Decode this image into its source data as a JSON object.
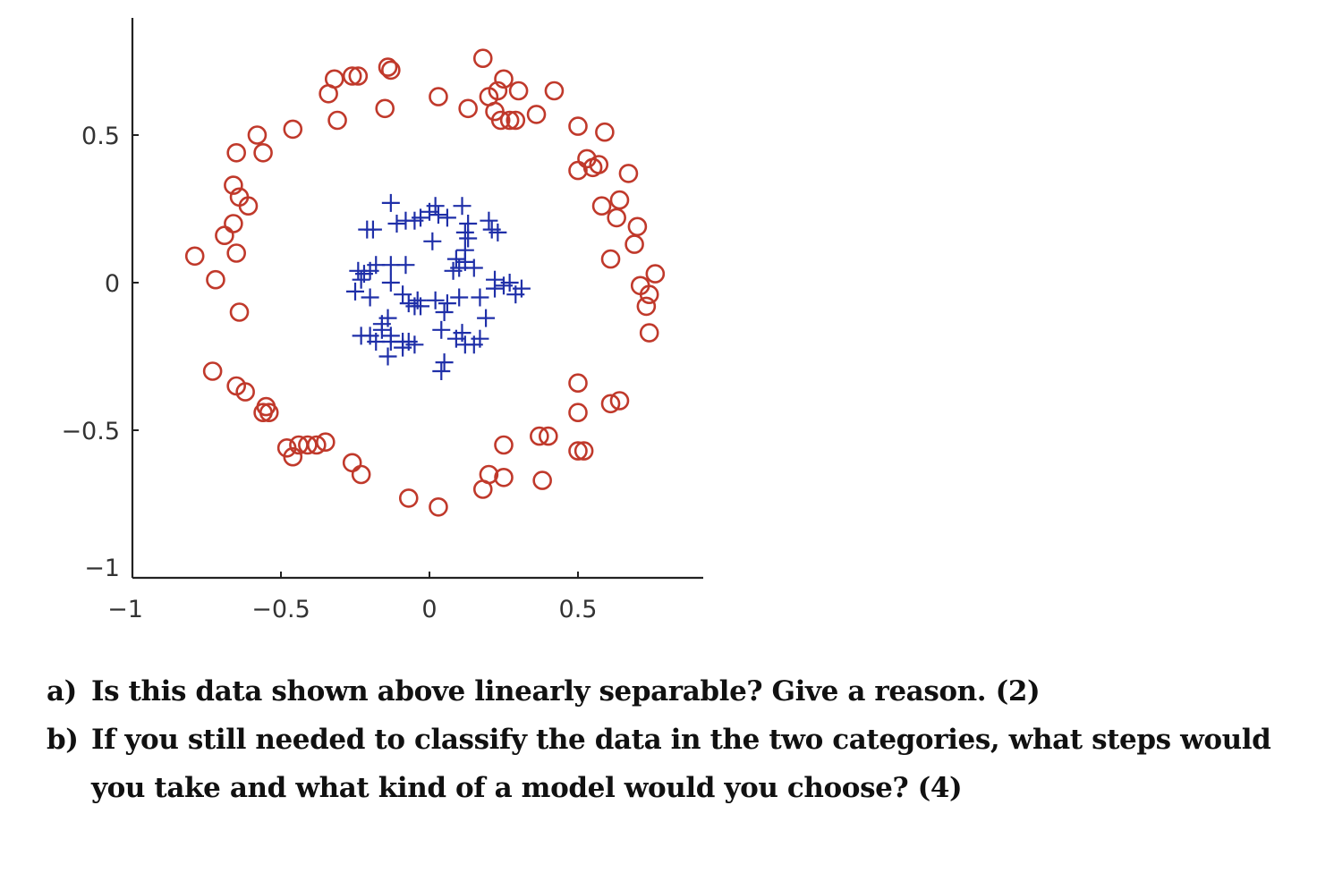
{
  "chart_data": {
    "type": "scatter",
    "title": "",
    "xlabel": "",
    "ylabel": "",
    "xlim": [
      -1,
      1
    ],
    "ylim": [
      -1,
      0.9
    ],
    "x_ticks": [
      {
        "value": -1,
        "label": "−1"
      },
      {
        "value": -0.5,
        "label": "−0.5"
      },
      {
        "value": 0,
        "label": "0"
      },
      {
        "value": 0.5,
        "label": "0.5"
      }
    ],
    "y_ticks": [
      {
        "value": -1,
        "label": "−1"
      },
      {
        "value": -0.5,
        "label": "−0.5"
      },
      {
        "value": 0,
        "label": "0"
      },
      {
        "value": 0.5,
        "label": "0.5"
      }
    ],
    "grid": false,
    "series": [
      {
        "marker": "circle",
        "color": "#c0392b",
        "points": [
          [
            -0.79,
            0.09
          ],
          [
            -0.72,
            0.01
          ],
          [
            -0.69,
            0.16
          ],
          [
            -0.66,
            0.2
          ],
          [
            -0.65,
            0.1
          ],
          [
            -0.66,
            0.33
          ],
          [
            -0.64,
            0.29
          ],
          [
            -0.61,
            0.26
          ],
          [
            -0.64,
            -0.1
          ],
          [
            -0.73,
            -0.3
          ],
          [
            -0.65,
            -0.35
          ],
          [
            -0.62,
            -0.37
          ],
          [
            -0.55,
            -0.42
          ],
          [
            -0.54,
            -0.44
          ],
          [
            -0.56,
            -0.44
          ],
          [
            -0.65,
            0.44
          ],
          [
            -0.58,
            0.5
          ],
          [
            -0.56,
            0.44
          ],
          [
            -0.46,
            0.52
          ],
          [
            -0.34,
            0.64
          ],
          [
            -0.32,
            0.69
          ],
          [
            -0.26,
            0.7
          ],
          [
            -0.24,
            0.7
          ],
          [
            -0.14,
            0.73
          ],
          [
            -0.13,
            0.72
          ],
          [
            -0.31,
            0.55
          ],
          [
            -0.15,
            0.59
          ],
          [
            0.03,
            0.63
          ],
          [
            0.13,
            0.59
          ],
          [
            0.18,
            0.76
          ],
          [
            0.2,
            0.63
          ],
          [
            0.23,
            0.65
          ],
          [
            0.25,
            0.69
          ],
          [
            0.22,
            0.58
          ],
          [
            0.24,
            0.55
          ],
          [
            0.27,
            0.55
          ],
          [
            0.29,
            0.55
          ],
          [
            0.3,
            0.65
          ],
          [
            0.36,
            0.57
          ],
          [
            0.42,
            0.65
          ],
          [
            0.5,
            0.53
          ],
          [
            0.59,
            0.51
          ],
          [
            0.53,
            0.42
          ],
          [
            0.55,
            0.39
          ],
          [
            0.57,
            0.4
          ],
          [
            0.5,
            0.38
          ],
          [
            0.67,
            0.37
          ],
          [
            0.58,
            0.26
          ],
          [
            0.64,
            0.28
          ],
          [
            0.63,
            0.22
          ],
          [
            0.7,
            0.19
          ],
          [
            0.69,
            0.13
          ],
          [
            0.61,
            0.08
          ],
          [
            0.76,
            0.03
          ],
          [
            0.71,
            -0.01
          ],
          [
            0.74,
            -0.04
          ],
          [
            0.73,
            -0.08
          ],
          [
            0.74,
            -0.17
          ],
          [
            0.5,
            -0.34
          ],
          [
            0.5,
            -0.44
          ],
          [
            0.61,
            -0.41
          ],
          [
            0.64,
            -0.4
          ],
          [
            0.5,
            -0.57
          ],
          [
            0.52,
            -0.57
          ],
          [
            0.37,
            -0.52
          ],
          [
            0.4,
            -0.52
          ],
          [
            0.38,
            -0.67
          ],
          [
            0.25,
            -0.55
          ],
          [
            0.25,
            -0.66
          ],
          [
            0.2,
            -0.65
          ],
          [
            0.18,
            -0.7
          ],
          [
            -0.07,
            -0.73
          ],
          [
            0.03,
            -0.76
          ],
          [
            -0.26,
            -0.61
          ],
          [
            -0.23,
            -0.65
          ],
          [
            -0.48,
            -0.56
          ],
          [
            -0.46,
            -0.59
          ],
          [
            -0.44,
            -0.55
          ],
          [
            -0.41,
            -0.55
          ],
          [
            -0.38,
            -0.55
          ],
          [
            -0.35,
            -0.54
          ]
        ]
      },
      {
        "marker": "plus",
        "color": "#1f2fa8",
        "points": [
          [
            -0.13,
            0.27
          ],
          [
            -0.05,
            0.21
          ],
          [
            -0.03,
            0.22
          ],
          [
            0.0,
            0.24
          ],
          [
            0.02,
            0.26
          ],
          [
            0.06,
            0.22
          ],
          [
            0.11,
            0.26
          ],
          [
            -0.21,
            0.18
          ],
          [
            -0.19,
            0.18
          ],
          [
            -0.11,
            0.2
          ],
          [
            -0.08,
            0.21
          ],
          [
            0.01,
            0.14
          ],
          [
            0.03,
            0.23
          ],
          [
            0.13,
            0.2
          ],
          [
            0.12,
            0.17
          ],
          [
            0.13,
            0.15
          ],
          [
            0.2,
            0.21
          ],
          [
            0.21,
            0.18
          ],
          [
            0.23,
            0.17
          ],
          [
            0.12,
            0.11
          ],
          [
            0.09,
            0.08
          ],
          [
            0.1,
            0.05
          ],
          [
            0.12,
            0.07
          ],
          [
            0.15,
            0.05
          ],
          [
            0.08,
            0.04
          ],
          [
            -0.18,
            0.06
          ],
          [
            -0.13,
            0.06
          ],
          [
            -0.08,
            0.06
          ],
          [
            -0.24,
            0.04
          ],
          [
            -0.22,
            0.03
          ],
          [
            -0.2,
            0.04
          ],
          [
            -0.25,
            -0.03
          ],
          [
            -0.23,
            0.01
          ],
          [
            -0.2,
            -0.05
          ],
          [
            -0.13,
            0.0
          ],
          [
            -0.09,
            -0.04
          ],
          [
            -0.07,
            -0.07
          ],
          [
            -0.04,
            -0.06
          ],
          [
            -0.05,
            -0.08
          ],
          [
            -0.03,
            -0.08
          ],
          [
            0.02,
            -0.06
          ],
          [
            0.06,
            -0.07
          ],
          [
            0.05,
            -0.1
          ],
          [
            0.1,
            -0.05
          ],
          [
            0.17,
            -0.05
          ],
          [
            0.22,
            -0.02
          ],
          [
            0.22,
            0.01
          ],
          [
            0.25,
            -0.01
          ],
          [
            0.27,
            0.0
          ],
          [
            0.29,
            -0.04
          ],
          [
            0.31,
            -0.02
          ],
          [
            0.19,
            -0.12
          ],
          [
            -0.16,
            -0.14
          ],
          [
            -0.14,
            -0.12
          ],
          [
            -0.16,
            -0.16
          ],
          [
            -0.13,
            -0.18
          ],
          [
            -0.18,
            -0.2
          ],
          [
            -0.23,
            -0.18
          ],
          [
            -0.2,
            -0.18
          ],
          [
            -0.13,
            -0.2
          ],
          [
            -0.09,
            -0.2
          ],
          [
            -0.07,
            -0.2
          ],
          [
            -0.09,
            -0.22
          ],
          [
            -0.05,
            -0.21
          ],
          [
            -0.14,
            -0.25
          ],
          [
            0.04,
            -0.16
          ],
          [
            0.09,
            -0.19
          ],
          [
            0.11,
            -0.17
          ],
          [
            0.12,
            -0.21
          ],
          [
            0.15,
            -0.21
          ],
          [
            0.17,
            -0.19
          ],
          [
            0.05,
            -0.27
          ],
          [
            0.04,
            -0.3
          ]
        ]
      }
    ]
  },
  "questions": [
    {
      "label": "a)",
      "text": "Is this data shown above linearly separable? Give a reason. (2)"
    },
    {
      "label": "b)",
      "text": "If you still needed to classify the data in the two categories, what steps would you take and what kind of a model would you choose? (4)"
    }
  ]
}
